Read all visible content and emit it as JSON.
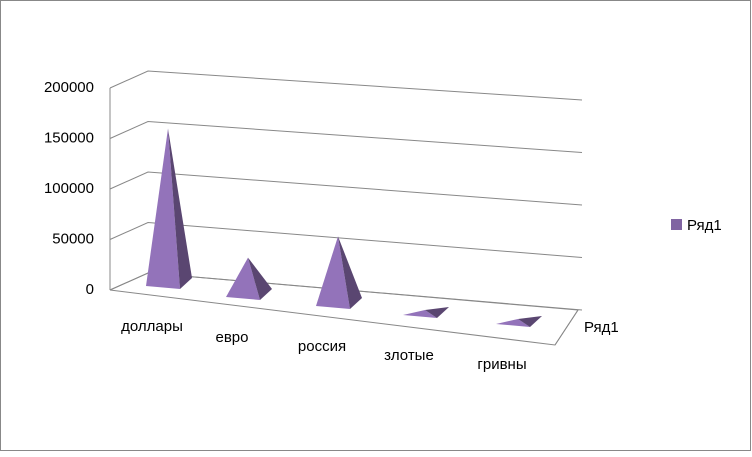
{
  "chart_data": {
    "type": "pyramid3d",
    "categories": [
      "доллары",
      "евро",
      "россия",
      "злотые",
      "гривны"
    ],
    "series": [
      {
        "name": "Ряд1",
        "color": "#8064a2",
        "values": [
          152000,
          35000,
          65000,
          1000,
          1000
        ]
      }
    ],
    "ylim": [
      0,
      200000
    ],
    "yticks": [
      0,
      50000,
      100000,
      150000,
      200000
    ],
    "grid": true,
    "legend": "right"
  }
}
